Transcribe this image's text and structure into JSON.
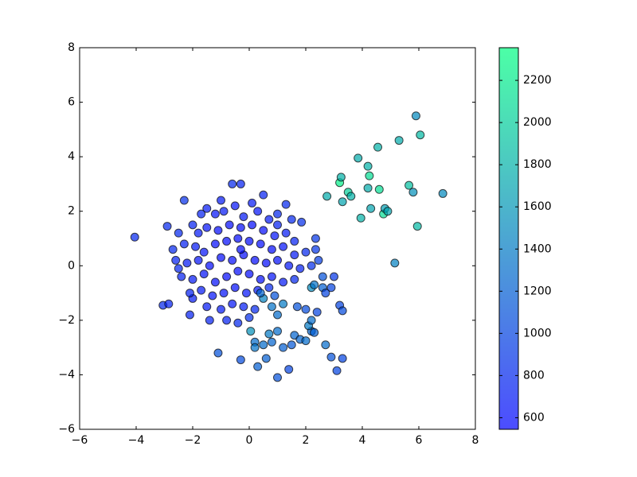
{
  "chart_data": {
    "type": "scatter",
    "x": [
      -4.05,
      -3.05,
      -2.85,
      -2.9,
      -2.3,
      -0.6,
      -0.3,
      0.5,
      1.3,
      1.85,
      2.35,
      2.45,
      2.35,
      -1.4,
      -2.1,
      -2.0,
      -1.5,
      -1.2,
      -0.9,
      -0.5,
      -0.2,
      0.3,
      0.7,
      1.0,
      -2.0,
      -1.8,
      -1.5,
      -1.1,
      -0.7,
      -0.3,
      0.1,
      0.5,
      0.9,
      1.3,
      1.6,
      -2.3,
      -1.9,
      -1.6,
      -1.2,
      -0.8,
      -0.4,
      0.0,
      0.4,
      0.8,
      1.2,
      1.6,
      2.0,
      -2.6,
      -2.2,
      -1.8,
      -1.4,
      -1.0,
      -0.6,
      -0.2,
      0.2,
      0.6,
      1.0,
      1.4,
      1.8,
      -2.4,
      -2.0,
      -1.6,
      -1.2,
      -0.8,
      -0.4,
      0.0,
      0.4,
      0.8,
      1.2,
      1.6,
      -2.1,
      -1.7,
      -1.3,
      -0.9,
      -0.5,
      -0.1,
      0.3,
      0.7,
      -1.5,
      -1.0,
      -0.6,
      -0.2,
      0.2,
      -0.8,
      -0.4,
      0.0,
      -1.7,
      -1.0,
      0.1,
      1.0,
      1.5,
      -2.5,
      -2.7,
      2.2,
      -2.5,
      -0.3,
      1,
      1.4,
      0.3,
      -0.3,
      0.6,
      1.2,
      2.7,
      2.9,
      3.1,
      3.3,
      3.2,
      3.3,
      -1.1,
      0.05,
      0.2,
      0.2,
      0.7,
      1.0,
      1.6,
      1.8,
      2.0,
      2.2,
      2.3,
      2.1,
      2.2,
      2.6,
      2.2,
      2.3,
      2.6,
      2.9,
      3.0,
      1.7,
      2.0,
      2.4,
      2.7,
      1.5,
      0.5,
      0.8,
      1.2,
      0.5,
      0.8,
      1.0,
      0.4,
      0.9,
      3.2,
      3.25,
      3.3,
      3.5,
      3.6,
      2.75,
      3.85,
      3.95,
      4.2,
      4.25,
      4.2,
      4.3,
      4.55,
      4.6,
      4.75,
      4.8,
      4.9,
      5.15,
      5.3,
      5.65,
      5.8,
      5.9,
      5.95,
      6.05,
      6.85
    ],
    "values": [
      1.05,
      -1.45,
      -1.4,
      1.45,
      2.4,
      3.0,
      3.0,
      2.6,
      2.25,
      1.6,
      1.0,
      0.2,
      0.6,
      -2.0,
      -1.8,
      -1.2,
      2.1,
      1.9,
      2.0,
      2.2,
      1.8,
      2.0,
      1.7,
      1.5,
      1.5,
      1.2,
      1.4,
      1.3,
      1.5,
      1.4,
      1.5,
      1.3,
      1.1,
      1.2,
      0.9,
      0.8,
      0.7,
      0.5,
      0.8,
      0.9,
      1.0,
      0.9,
      0.8,
      0.6,
      0.7,
      0.4,
      0.5,
      0.2,
      0.1,
      0.2,
      0.0,
      0.3,
      0.2,
      0.4,
      0.2,
      0.1,
      0.2,
      0.0,
      -0.1,
      -0.4,
      -0.5,
      -0.3,
      -0.6,
      -0.4,
      -0.2,
      -0.3,
      -0.5,
      -0.4,
      -0.6,
      -0.5,
      -1.0,
      -0.9,
      -1.1,
      -1.0,
      -0.8,
      -1.0,
      -0.9,
      -0.8,
      -1.5,
      -1.6,
      -1.4,
      -1.5,
      -1.6,
      -2.0,
      -2.1,
      -1.9,
      1.9,
      2.4,
      2.3,
      1.9,
      1.7,
      1.2,
      0.6,
      0.0,
      -0.1,
      0.6,
      -4.1,
      -3.8,
      -3.7,
      -3.45,
      -3.4,
      -3.0,
      -2.9,
      -3.35,
      -3.85,
      -3.4,
      -1.45,
      -1.65,
      -3.2,
      -2.4,
      -2.8,
      -3.0,
      -2.5,
      -2.4,
      -2.55,
      -2.7,
      -2.75,
      -2.4,
      -2.45,
      -2.2,
      -2.0,
      -0.8,
      -0.8,
      -0.7,
      -0.4,
      -0.8,
      -0.4,
      -1.5,
      -1.6,
      -1.7,
      -1.0,
      -2.9,
      -2.9,
      -2.8,
      -1.4,
      -1.2,
      -1.5,
      -1.8,
      -1.0,
      -1.1,
      3.05,
      3.25,
      2.35,
      2.7,
      2.55,
      2.55,
      3.95,
      1.75,
      3.65,
      3.3,
      2.85,
      2.1,
      4.35,
      2.8,
      1.9,
      2.1,
      2.0,
      0.1,
      4.6,
      2.95,
      2.7,
      5.5,
      1.45,
      4.8,
      2.65
    ],
    "color_values": [
      800,
      800,
      750,
      800,
      850,
      800,
      750,
      750,
      800,
      850,
      900,
      950,
      900,
      750,
      750,
      700,
      700,
      650,
      700,
      650,
      700,
      650,
      700,
      750,
      750,
      700,
      650,
      600,
      600,
      600,
      600,
      600,
      650,
      700,
      750,
      750,
      700,
      650,
      600,
      600,
      600,
      600,
      600,
      600,
      650,
      700,
      800,
      750,
      700,
      650,
      600,
      600,
      600,
      600,
      600,
      600,
      620,
      680,
      750,
      750,
      700,
      650,
      620,
      600,
      600,
      600,
      620,
      650,
      700,
      800,
      750,
      700,
      650,
      650,
      620,
      650,
      700,
      800,
      700,
      700,
      680,
      720,
      800,
      750,
      800,
      850,
      750,
      700,
      700,
      800,
      800,
      800,
      800,
      850,
      780,
      600,
      1100,
      1000,
      1200,
      1050,
      1200,
      1200,
      1300,
      1100,
      1000,
      1000,
      1000,
      1050,
      1100,
      1550,
      1300,
      1350,
      1400,
      1300,
      1250,
      1250,
      1300,
      1250,
      1200,
      1400,
      1300,
      1200,
      1500,
      1350,
      1100,
      1000,
      900,
      1100,
      1050,
      1000,
      1000,
      1150,
      1300,
      1250,
      1400,
      1450,
      1350,
      1300,
      1250,
      1100,
      2250,
      1800,
      1700,
      2000,
      1800,
      1750,
      1750,
      1800,
      1800,
      2100,
      1750,
      1700,
      1800,
      2100,
      2100,
      1650,
      1700,
      1450,
      1750,
      1900,
      1550,
      1500,
      1850,
      1850,
      1500
    ],
    "xlim": [
      -6,
      8
    ],
    "xticks": [
      {
        "value": -6,
        "label": "−6"
      },
      {
        "value": -4,
        "label": "−4"
      },
      {
        "value": -2,
        "label": "−2"
      },
      0,
      2,
      4,
      6,
      8
    ],
    "ylim": [
      -6,
      8
    ],
    "yticks": [
      {
        "value": -6,
        "label": "−6"
      },
      {
        "value": -4,
        "label": "−4"
      },
      {
        "value": -2,
        "label": "−2"
      },
      0,
      2,
      4,
      6,
      8
    ],
    "colormap": [
      "#0000ff",
      "#00ff80"
    ],
    "alpha": 0.7,
    "edgecolor": "#000000",
    "clim": [
      545,
      2355
    ],
    "cticks": [
      600,
      800,
      1000,
      1200,
      1400,
      1600,
      1800,
      2000,
      2200
    ]
  }
}
